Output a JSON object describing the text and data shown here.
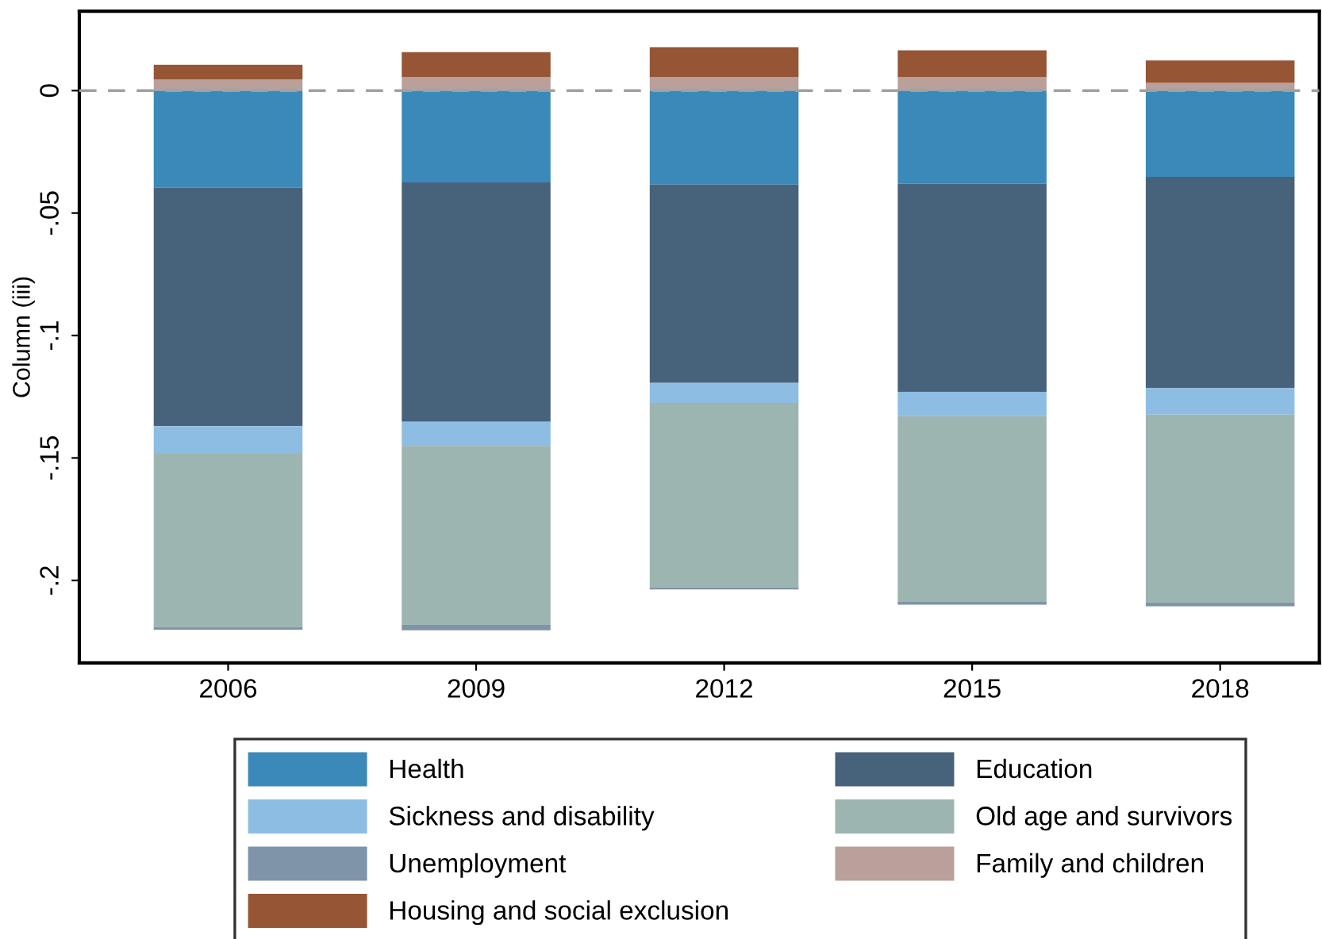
{
  "chart_data": {
    "type": "bar",
    "stacked": true,
    "ylabel": "Column (iii)",
    "categories": [
      "2006",
      "2009",
      "2012",
      "2015",
      "2018"
    ],
    "series": [
      {
        "name": "Health",
        "color": "#3b89b8",
        "values": [
          -0.0397,
          -0.0375,
          -0.0384,
          -0.038,
          -0.0352
        ]
      },
      {
        "name": "Education",
        "color": "#47637b",
        "values": [
          -0.0973,
          -0.0977,
          -0.0809,
          -0.085,
          -0.0863
        ]
      },
      {
        "name": "Sickness and disability",
        "color": "#8ebde3",
        "values": [
          -0.0112,
          -0.0099,
          -0.0082,
          -0.0099,
          -0.0108
        ]
      },
      {
        "name": "Old age and survivors",
        "color": "#9db5b1",
        "values": [
          -0.0708,
          -0.0731,
          -0.0753,
          -0.0759,
          -0.0768
        ]
      },
      {
        "name": "Unemployment",
        "color": "#7f93a9",
        "values": [
          -0.0011,
          -0.0022,
          -0.0009,
          -0.0011,
          -0.0015
        ]
      },
      {
        "name": "Family and children",
        "color": "#b9a09a",
        "values": [
          0.0045,
          0.0056,
          0.0056,
          0.0056,
          0.0032
        ]
      },
      {
        "name": "Housing and social exclusion",
        "color": "#965535",
        "values": [
          0.006,
          0.0101,
          0.0121,
          0.0108,
          0.0091
        ]
      }
    ],
    "ylim": [
      -0.2337,
      0.0324
    ],
    "yticks": [
      {
        "value": -0.2,
        "label": "-.2"
      },
      {
        "value": -0.15,
        "label": "-.15"
      },
      {
        "value": -0.1,
        "label": "-.1"
      },
      {
        "value": -0.05,
        "label": "-.05"
      },
      0
    ],
    "ref_lines": [
      {
        "axis": "y",
        "value": 0,
        "color": "#a0a0a0",
        "line_style": "dashed"
      }
    ],
    "grid": false,
    "legend": "bottom"
  }
}
